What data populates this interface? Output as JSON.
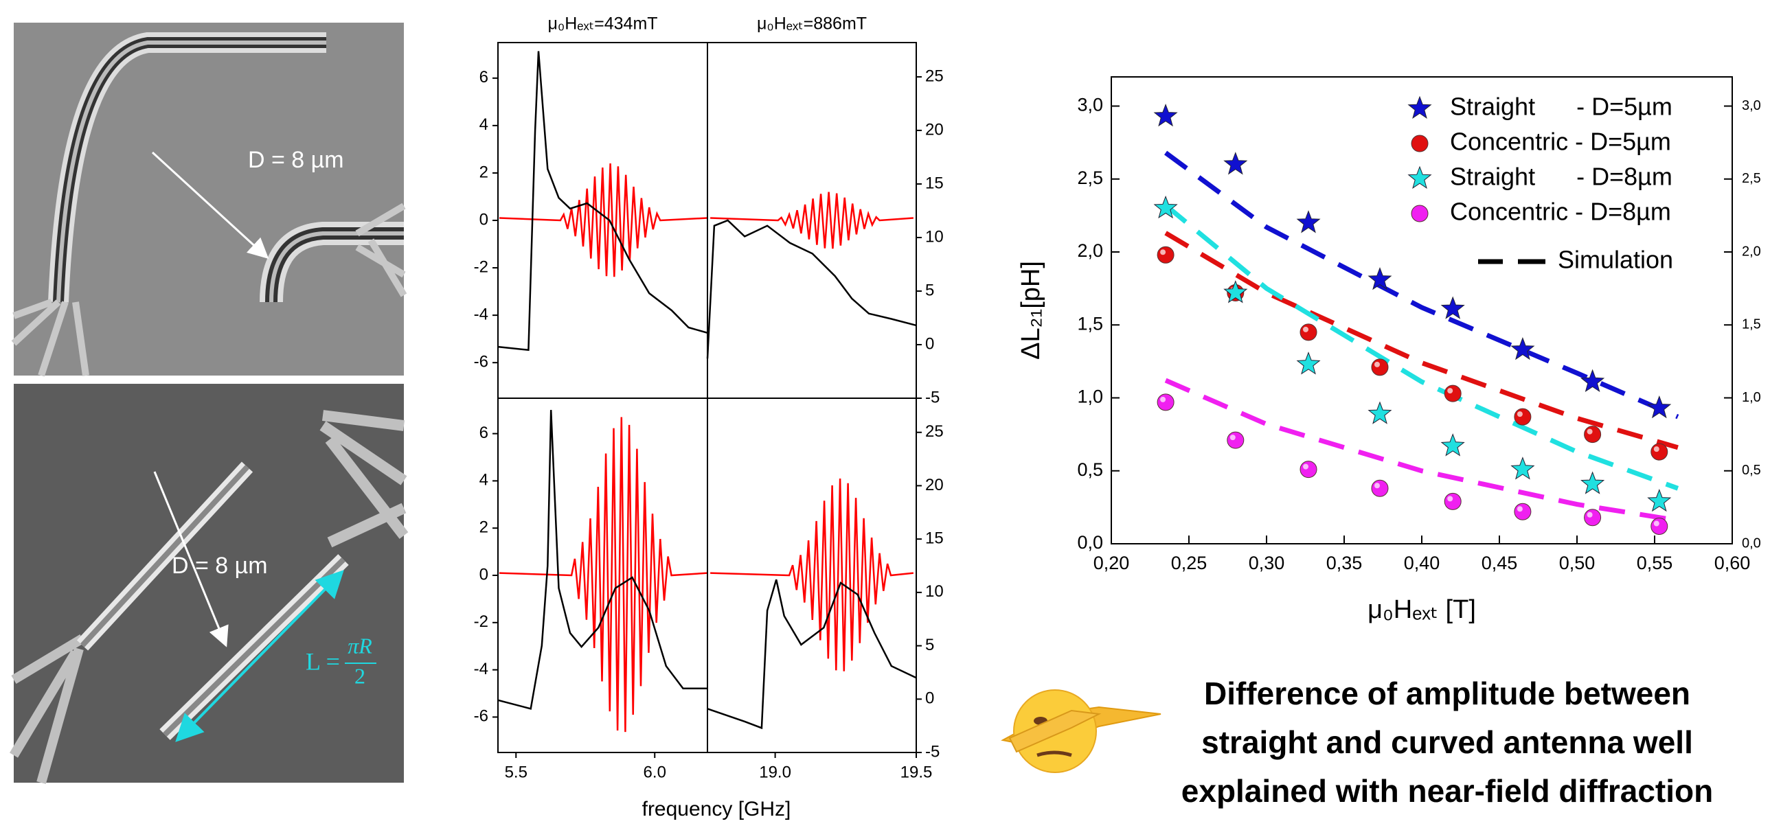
{
  "images": [
    {
      "label": "D = 8 µm"
    },
    {
      "label": "D = 8 µm",
      "length_label": {
        "lhs": "L =",
        "num": "πR",
        "den": "2"
      }
    }
  ],
  "chart_data": [
    {
      "type": "line",
      "xlabel": "frequency [GHz]",
      "ylim": [
        -7.5,
        7.5
      ],
      "yticks": [
        -6,
        -4,
        -2,
        0,
        2,
        4,
        6
      ],
      "y2lim": [
        -5,
        28.2
      ],
      "y2ticks": [
        -5,
        0,
        5,
        10,
        15,
        20,
        25
      ],
      "columns": [
        {
          "title": "μ₀Hₑₓₜ=434mT",
          "xlim": [
            5.435,
            6.19
          ],
          "xticks": [
            5.5,
            {
              "value": 6,
              "label": "6.0"
            }
          ],
          "panels": [
            {
              "series": [
                {
                  "color": "#ff0000",
                  "x": [
                    5.44,
                    5.66,
                    5.672,
                    5.686,
                    5.7,
                    5.714,
                    5.728,
                    5.742,
                    5.756,
                    5.77,
                    5.784,
                    5.798,
                    5.812,
                    5.826,
                    5.84,
                    5.854,
                    5.868,
                    5.882,
                    5.896,
                    5.91,
                    5.924,
                    5.938,
                    5.952,
                    5.966,
                    5.98,
                    5.994,
                    6.008,
                    6.02,
                    6.19
                  ],
                  "values": [
                    0.1,
                    0,
                    0.25,
                    -0.36,
                    0.5,
                    -0.67,
                    0.86,
                    -1.1,
                    1.34,
                    -1.61,
                    1.85,
                    -2.06,
                    2.23,
                    -2.35,
                    2.4,
                    -2.38,
                    2.28,
                    -2.11,
                    1.92,
                    -1.68,
                    1.42,
                    -1.18,
                    0.94,
                    -0.72,
                    0.55,
                    -0.38,
                    0.29,
                    0,
                    0.1
                  ]
                },
                {
                  "color": "#000000",
                  "axis": "y2",
                  "x": [
                    5.435,
                    5.545,
                    5.569,
                    5.581,
                    5.614,
                    5.654,
                    5.695,
                    5.756,
                    5.837,
                    5.907,
                    5.98,
                    6.061,
                    6.122,
                    6.19
                  ],
                  "values": [
                    -0.2,
                    -0.5,
                    20,
                    27.4,
                    16.4,
                    13.7,
                    12.7,
                    13.2,
                    11.6,
                    8.0,
                    4.8,
                    3.2,
                    1.6,
                    1.1
                  ]
                }
              ]
            },
            {
              "series": [
                {
                  "color": "#ff0000",
                  "x": [
                    5.44,
                    5.7,
                    5.712,
                    5.726,
                    5.74,
                    5.754,
                    5.768,
                    5.782,
                    5.796,
                    5.81,
                    5.824,
                    5.838,
                    5.852,
                    5.866,
                    5.88,
                    5.894,
                    5.908,
                    5.922,
                    5.936,
                    5.95,
                    5.964,
                    5.978,
                    5.992,
                    6.006,
                    6.02,
                    6.034,
                    6.048,
                    6.06,
                    6.19
                  ],
                  "values": [
                    0.1,
                    0,
                    0.7,
                    -1.0,
                    1.41,
                    -1.88,
                    2.41,
                    -3.08,
                    3.75,
                    -4.49,
                    5.16,
                    -5.76,
                    6.23,
                    -6.57,
                    6.7,
                    -6.63,
                    6.37,
                    -5.9,
                    5.36,
                    -4.69,
                    3.95,
                    -3.28,
                    2.61,
                    -2.01,
                    1.54,
                    -1.07,
                    0.8,
                    0,
                    0.1
                  ]
                },
                {
                  "color": "#000000",
                  "axis": "y2",
                  "x": [
                    5.435,
                    5.553,
                    5.593,
                    5.614,
                    5.626,
                    5.654,
                    5.695,
                    5.736,
                    5.797,
                    5.858,
                    5.919,
                    5.98,
                    6.041,
                    6.102,
                    6.19
                  ],
                  "values": [
                    -0.1,
                    -0.9,
                    5.0,
                    12.5,
                    27.1,
                    10.4,
                    6.2,
                    4.9,
                    6.7,
                    10.4,
                    11.4,
                    8.3,
                    3.1,
                    1.0,
                    1.0
                  ]
                }
              ]
            }
          ]
        },
        {
          "title": "μ₀Hₑₓₜ=886mT",
          "xlim": [
            18.76,
            19.5
          ],
          "xticks": [
            {
              "value": 19,
              "label": "19.0"
            },
            19.5
          ],
          "panels": [
            {
              "series": [
                {
                  "color": "#ff0000",
                  "x": [
                    18.77,
                    19.01,
                    19.022,
                    19.036,
                    19.05,
                    19.064,
                    19.078,
                    19.092,
                    19.106,
                    19.12,
                    19.134,
                    19.148,
                    19.162,
                    19.176,
                    19.19,
                    19.204,
                    19.218,
                    19.232,
                    19.246,
                    19.26,
                    19.274,
                    19.288,
                    19.302,
                    19.316,
                    19.33,
                    19.344,
                    19.358,
                    19.37,
                    19.49
                  ],
                  "values": [
                    0.1,
                    0,
                    0.12,
                    -0.18,
                    0.25,
                    -0.34,
                    0.43,
                    -0.55,
                    0.67,
                    -0.8,
                    0.92,
                    -1.03,
                    1.12,
                    -1.18,
                    1.2,
                    -1.19,
                    1.14,
                    -1.06,
                    0.96,
                    -0.84,
                    0.71,
                    -0.59,
                    0.47,
                    -0.36,
                    0.28,
                    -0.19,
                    0.14,
                    0,
                    0.1
                  ]
                },
                {
                  "color": "#000000",
                  "axis": "y2",
                  "x": [
                    18.76,
                    18.784,
                    18.832,
                    18.892,
                    18.972,
                    19.052,
                    19.132,
                    19.212,
                    19.272,
                    19.332,
                    19.412,
                    19.5
                  ],
                  "values": [
                    -1.3,
                    11.1,
                    11.6,
                    10.1,
                    11.1,
                    9.5,
                    8.5,
                    6.4,
                    4.3,
                    2.9,
                    2.4,
                    1.8
                  ]
                }
              ]
            },
            {
              "series": [
                {
                  "color": "#ff0000",
                  "x": [
                    18.77,
                    19.05,
                    19.062,
                    19.076,
                    19.09,
                    19.104,
                    19.118,
                    19.132,
                    19.146,
                    19.16,
                    19.174,
                    19.188,
                    19.202,
                    19.216,
                    19.23,
                    19.244,
                    19.258,
                    19.272,
                    19.286,
                    19.3,
                    19.314,
                    19.328,
                    19.342,
                    19.356,
                    19.37,
                    19.384,
                    19.398,
                    19.41,
                    19.49
                  ],
                  "values": [
                    0.1,
                    0,
                    0.43,
                    -0.62,
                    0.86,
                    -1.15,
                    1.48,
                    -1.89,
                    2.3,
                    -2.75,
                    3.16,
                    -3.53,
                    3.81,
                    -4.02,
                    4.1,
                    -4.06,
                    3.9,
                    -3.61,
                    3.28,
                    -2.87,
                    2.42,
                    -2.01,
                    1.6,
                    -1.23,
                    0.94,
                    -0.66,
                    0.49,
                    0,
                    0.1
                  ]
                },
                {
                  "color": "#000000",
                  "axis": "y2",
                  "x": [
                    18.76,
                    18.892,
                    18.952,
                    18.972,
                    19.004,
                    19.032,
                    19.092,
                    19.172,
                    19.232,
                    19.292,
                    19.352,
                    19.412,
                    19.5
                  ],
                  "values": [
                    -0.9,
                    -2.1,
                    -2.7,
                    8.3,
                    11.2,
                    7.8,
                    5.1,
                    6.7,
                    10.9,
                    9.8,
                    6.2,
                    3.1,
                    2.0
                  ]
                }
              ]
            }
          ]
        }
      ]
    },
    {
      "type": "scatter",
      "xlabel": "μ₀Hₑₓₜ [T]",
      "ylabel": "ΔL₂₁[pH]",
      "xlim": [
        0.2,
        0.6
      ],
      "ylim": [
        0,
        3.2
      ],
      "y2lim": [
        0,
        3.2
      ],
      "xticks": [
        {
          "value": 0.2,
          "label": "0,20"
        },
        {
          "value": 0.25,
          "label": "0,25"
        },
        {
          "value": 0.3,
          "label": "0,30"
        },
        {
          "value": 0.35,
          "label": "0,35"
        },
        {
          "value": 0.4,
          "label": "0,40"
        },
        {
          "value": 0.45,
          "label": "0,45"
        },
        {
          "value": 0.5,
          "label": "0,50"
        },
        {
          "value": 0.55,
          "label": "0,55"
        },
        {
          "value": 0.6,
          "label": "0,60"
        }
      ],
      "yticks": [
        {
          "value": 0,
          "label": "0,0"
        },
        {
          "value": 0.5,
          "label": "0,5"
        },
        {
          "value": 1,
          "label": "1,0"
        },
        {
          "value": 1.5,
          "label": "1,5"
        },
        {
          "value": 2,
          "label": "2,0"
        },
        {
          "value": 2.5,
          "label": "2,5"
        },
        {
          "value": 3,
          "label": "3,0"
        }
      ],
      "y2ticks": [
        {
          "value": 0,
          "label": "0,0"
        },
        {
          "value": 0.5,
          "label": "0,5"
        },
        {
          "value": 1,
          "label": "1,0"
        },
        {
          "value": 1.5,
          "label": "1,5"
        },
        {
          "value": 2,
          "label": "2,0"
        },
        {
          "value": 2.5,
          "label": "2,5"
        },
        {
          "value": 3,
          "label": "3,0"
        }
      ],
      "x": [
        0.235,
        0.28,
        0.327,
        0.373,
        0.42,
        0.465,
        0.51,
        0.553
      ],
      "series": [
        {
          "name": "Straight      - D=5µm",
          "marker": "star",
          "color": "#1010d0",
          "values": [
            2.93,
            2.6,
            2.2,
            1.81,
            1.61,
            1.33,
            1.11,
            0.93
          ]
        },
        {
          "name": "Concentric - D=5µm",
          "marker": "circle",
          "color": "#e01010",
          "values": [
            1.98,
            1.72,
            1.45,
            1.21,
            1.03,
            0.87,
            0.75,
            0.63
          ]
        },
        {
          "name": "Straight      - D=8µm",
          "marker": "star",
          "color": "#20e0e0",
          "values": [
            2.3,
            1.72,
            1.23,
            0.89,
            0.67,
            0.51,
            0.41,
            0.29
          ]
        },
        {
          "name": "Concentric - D=8µm",
          "marker": "circle",
          "color": "#f020f0",
          "values": [
            0.97,
            0.71,
            0.51,
            0.38,
            0.29,
            0.22,
            0.18,
            0.12
          ]
        }
      ],
      "simulation": {
        "name": "Simulation",
        "x": [
          0.235,
          0.3,
          0.4,
          0.5,
          0.565
        ],
        "series": [
          {
            "color": "#1010d0",
            "values": [
              2.68,
              2.17,
              1.62,
              1.17,
              0.87
            ]
          },
          {
            "color": "#e01010",
            "values": [
              2.13,
              1.72,
              1.24,
              0.86,
              0.66
            ]
          },
          {
            "color": "#20e0e0",
            "values": [
              2.32,
              1.75,
              1.11,
              0.63,
              0.38
            ]
          },
          {
            "color": "#f020f0",
            "values": [
              1.12,
              0.82,
              0.5,
              0.27,
              0.16
            ]
          }
        ]
      }
    }
  ],
  "caption": [
    "Difference of amplitude between",
    "straight and curved antenna well",
    "explained with near-field diffraction"
  ]
}
